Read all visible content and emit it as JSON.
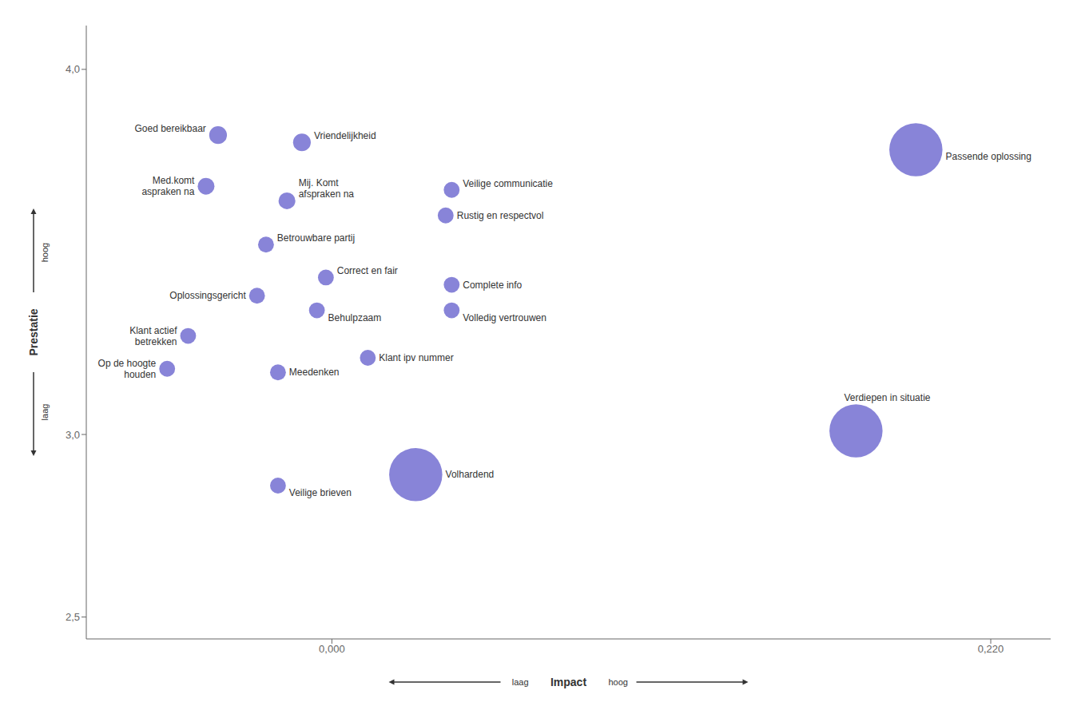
{
  "chart_data": {
    "type": "scatter",
    "xlabel": "Impact",
    "ylabel": "Prestatie",
    "annotations": [
      "hoog",
      "laag",
      "laag",
      "hoog"
    ],
    "x": [
      -0.038,
      -0.01,
      -0.042,
      -0.015,
      0.04,
      0.038,
      -0.022,
      -0.002,
      0.04,
      -0.025,
      -0.005,
      0.04,
      -0.048,
      0.012,
      -0.055,
      -0.018,
      0.195,
      0.175,
      0.028,
      -0.018
    ],
    "values": [
      3.82,
      3.8,
      3.68,
      3.64,
      3.67,
      3.6,
      3.52,
      3.43,
      3.41,
      3.38,
      3.34,
      3.34,
      3.27,
      3.21,
      3.18,
      3.17,
      3.78,
      3.01,
      2.89,
      2.86
    ],
    "sizes": [
      200,
      200,
      180,
      180,
      160,
      160,
      160,
      160,
      160,
      160,
      160,
      160,
      160,
      160,
      160,
      160,
      1800,
      1800,
      1800,
      160
    ],
    "labels": [
      "Goed bereikbaar",
      "Vriendelijkheid",
      "Med.komt\naspraken na",
      "Mij. Komt\nafspraken na",
      "Veilige communicatie",
      "Rustig en respectvol",
      "Betrouwbare partij",
      "Correct en fair",
      "Complete info",
      "Oplossingsgericht",
      "Behulpzaam",
      "Volledig vertrouwen",
      "Klant actief\nbetrekken",
      "Klant ipv nummer",
      "Op de hoogte\nhouden",
      "Meedenken",
      "Passende oplossing",
      "Verdiepen in situatie",
      "Volhardend",
      "Veilige brieven"
    ],
    "xlim": [
      -0.082,
      0.24
    ],
    "ylim": [
      2.44,
      4.12
    ],
    "xticks": [
      {
        "value": 0.0,
        "label": "0,000"
      },
      {
        "value": 0.22,
        "label": "0,220"
      }
    ],
    "yticks": [
      {
        "value": 4.0,
        "label": "4,0"
      },
      {
        "value": 3.0,
        "label": "3,0"
      },
      {
        "value": 2.5,
        "label": "2,5"
      }
    ],
    "grid": false,
    "color": "#8884d8"
  }
}
